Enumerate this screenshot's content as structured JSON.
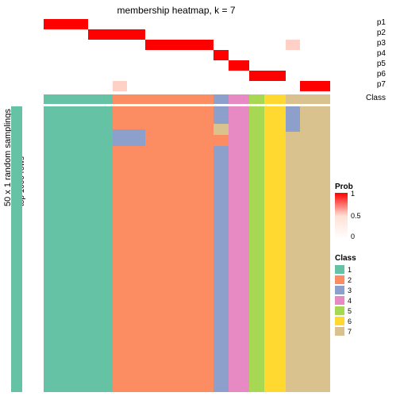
{
  "title": "membership heatmap, k = 7",
  "yaxis_outer": "50 x 1 random samplings",
  "yaxis_inner": "top 1000 rows",
  "p_labels": [
    "p1",
    "p2",
    "p3",
    "p4",
    "p5",
    "p6",
    "p7"
  ],
  "class_label": "Class",
  "white": "#ffffff",
  "red": "#ff0000",
  "lightred": "#ffd0c5",
  "columns": [
    {
      "w": 0.04,
      "class_color": "#ffffff",
      "p": [
        0,
        0,
        0,
        0,
        0,
        0,
        0
      ],
      "main": [
        {
          "c": "#ffffff",
          "h": 1.0
        }
      ]
    },
    {
      "w": 0.08,
      "class_color": "#66c2a5",
      "p": [
        1,
        0,
        0,
        0,
        0,
        0,
        0
      ],
      "main": [
        {
          "c": "#66c2a5",
          "h": 1.0
        }
      ]
    },
    {
      "w": 0.07,
      "class_color": "#66c2a5",
      "p": [
        1,
        0,
        0,
        0,
        0,
        0,
        0
      ],
      "main": [
        {
          "c": "#66c2a5",
          "h": 1.0
        }
      ]
    },
    {
      "w": 0.08,
      "class_color": "#66c2a5",
      "p": [
        0,
        1,
        0,
        0,
        0,
        0,
        0
      ],
      "main": [
        {
          "c": "#66c2a5",
          "h": 1.0
        }
      ]
    },
    {
      "w": 0.05,
      "class_color": "#fc8d62",
      "p": [
        0,
        1,
        0,
        0,
        0,
        0,
        0.18
      ],
      "main": [
        {
          "c": "#fc8d62",
          "h": 0.08
        },
        {
          "c": "#8da0cb",
          "h": 0.06
        },
        {
          "c": "#fc8d62",
          "h": 0.86
        }
      ]
    },
    {
      "w": 0.06,
      "class_color": "#fc8d62",
      "p": [
        0,
        1,
        0,
        0,
        0,
        0,
        0
      ],
      "main": [
        {
          "c": "#fc8d62",
          "h": 0.08
        },
        {
          "c": "#8da0cb",
          "h": 0.06
        },
        {
          "c": "#fc8d62",
          "h": 0.86
        }
      ]
    },
    {
      "w": 0.23,
      "class_color": "#fc8d62",
      "p": [
        0,
        0,
        1,
        0,
        0,
        0,
        0
      ],
      "main": [
        {
          "c": "#fc8d62",
          "h": 1.0
        }
      ]
    },
    {
      "w": 0.05,
      "class_color": "#8da0cb",
      "p": [
        0,
        0,
        0,
        1,
        0,
        0,
        0
      ],
      "main": [
        {
          "c": "#8da0cb",
          "h": 0.06
        },
        {
          "c": "#d9c28e",
          "h": 0.04
        },
        {
          "c": "#fc8d62",
          "h": 0.04
        },
        {
          "c": "#8da0cb",
          "h": 0.86
        }
      ]
    },
    {
      "w": 0.07,
      "class_color": "#e78ac3",
      "p": [
        0,
        0,
        0,
        0,
        1,
        0,
        0
      ],
      "main": [
        {
          "c": "#e78ac3",
          "h": 1.0
        }
      ]
    },
    {
      "w": 0.05,
      "class_color": "#a6d854",
      "p": [
        0,
        0,
        0,
        0,
        0,
        1,
        0
      ],
      "main": [
        {
          "c": "#a6d854",
          "h": 1.0
        }
      ]
    },
    {
      "w": 0.07,
      "class_color": "#ffd92f",
      "p": [
        0,
        0,
        0,
        0,
        0,
        1,
        0
      ],
      "main": [
        {
          "c": "#ffd92f",
          "h": 1.0
        }
      ]
    },
    {
      "w": 0.05,
      "class_color": "#d9c28e",
      "p": [
        0,
        0,
        0.18,
        0,
        0,
        0,
        0
      ],
      "main": [
        {
          "c": "#8da0cb",
          "h": 0.09
        },
        {
          "c": "#d9c28e",
          "h": 0.91
        }
      ]
    },
    {
      "w": 0.1,
      "class_color": "#d9c28e",
      "p": [
        0,
        0,
        0,
        0,
        0,
        0,
        1
      ],
      "main": [
        {
          "c": "#d9c28e",
          "h": 1.0
        }
      ]
    }
  ],
  "prob_legend": {
    "title": "Prob",
    "ticks": [
      "1",
      "0.5",
      "0"
    ]
  },
  "class_legend": {
    "title": "Class",
    "items": [
      {
        "c": "#66c2a5",
        "l": "1"
      },
      {
        "c": "#fc8d62",
        "l": "2"
      },
      {
        "c": "#8da0cb",
        "l": "3"
      },
      {
        "c": "#e78ac3",
        "l": "4"
      },
      {
        "c": "#a6d854",
        "l": "5"
      },
      {
        "c": "#ffd92f",
        "l": "6"
      },
      {
        "c": "#d9c28e",
        "l": "7"
      }
    ]
  }
}
